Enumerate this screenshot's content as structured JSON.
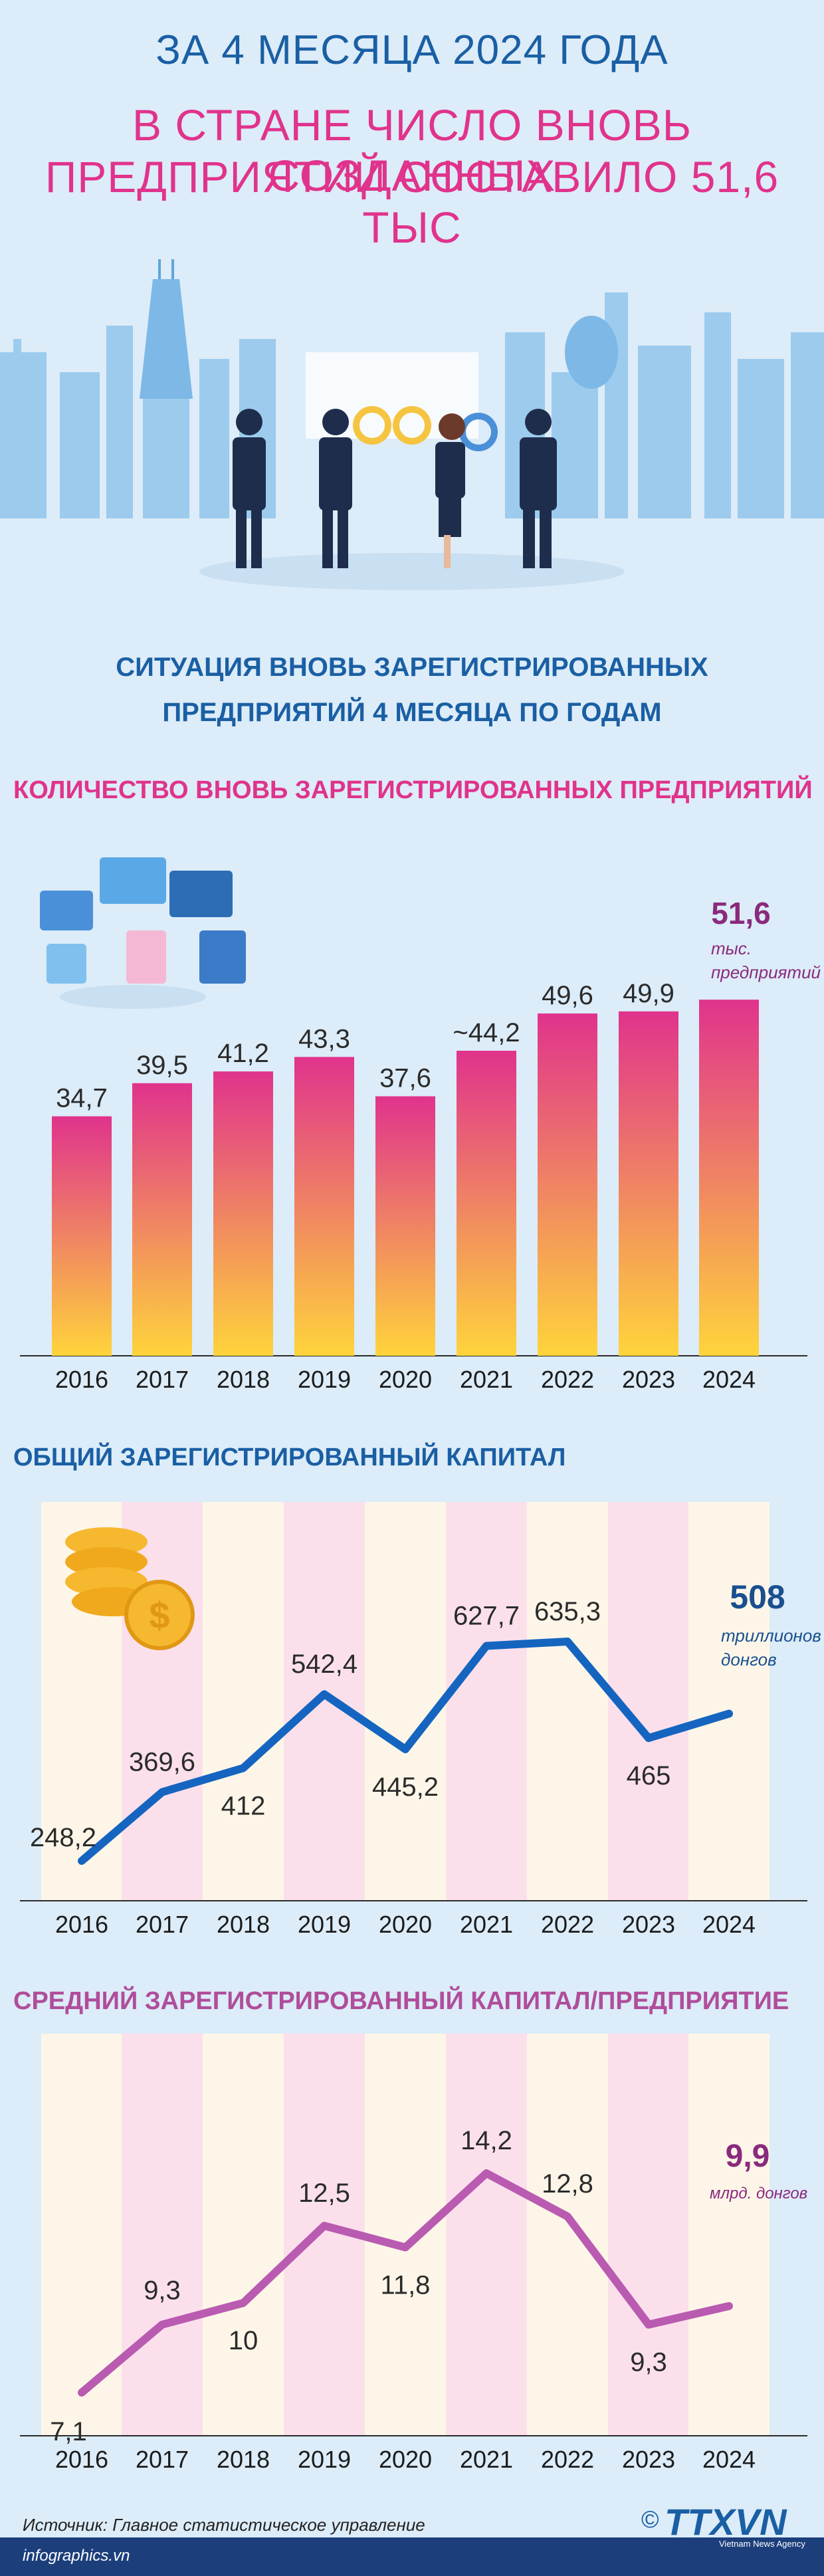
{
  "header": {
    "line1": "ЗА 4 МЕСЯЦА 2024 ГОДА",
    "line2": "В СТРАНЕ ЧИСЛО ВНОВЬ СОЗДАННЫХ",
    "line3": "ПРЕДПРИЯТИЙ СОСТАВИЛО 51,6 ТЫС"
  },
  "section": {
    "title_line1": "СИТУАЦИЯ ВНОВЬ ЗАРЕГИСТРИРОВАННЫХ",
    "title_line2": "ПРЕДПРИЯТИЙ 4 МЕСЯЦА ПО ГОДАМ"
  },
  "colors": {
    "accent_blue": "#1a5fa4",
    "accent_pink": "#e0338c",
    "accent_purple": "#b04d9b",
    "line_blue": "#1565c0",
    "line_purple": "#b95bb0"
  },
  "chart_data": [
    {
      "type": "bar",
      "title": "КОЛИЧЕСТВО ВНОВЬ ЗАРЕГИСТРИРОВАННЫХ ПРЕДПРИЯТИЙ",
      "categories": [
        "2016",
        "2017",
        "2018",
        "2019",
        "2020",
        "2021",
        "2022",
        "2023",
        "2024"
      ],
      "values": [
        34.7,
        39.5,
        41.2,
        43.3,
        37.6,
        44.2,
        49.6,
        49.9,
        51.6
      ],
      "labels": [
        "34,7",
        "39,5",
        "41,2",
        "43,3",
        "37,6",
        "~44,2",
        "49,6",
        "49,9",
        "51,6"
      ],
      "highlight_label": "51,6",
      "unit_lines": [
        "тыс.",
        "предприятий"
      ]
    },
    {
      "type": "line",
      "title": "ОБЩИЙ ЗАРЕГИСТРИРОВАННЫЙ КАПИТАЛ",
      "categories": [
        "2016",
        "2017",
        "2018",
        "2019",
        "2020",
        "2021",
        "2022",
        "2023",
        "2024"
      ],
      "values": [
        248.2,
        369.6,
        412,
        542.4,
        445.2,
        627.7,
        635.3,
        465,
        508
      ],
      "labels": [
        "248,2",
        "369,6",
        "412",
        "542,4",
        "445,2",
        "627,7",
        "635,3",
        "465",
        "508"
      ],
      "highlight_label": "508",
      "unit_lines": [
        "триллионов",
        "донгов"
      ]
    },
    {
      "type": "line",
      "title": "СРЕДНИЙ ЗАРЕГИСТРИРОВАННЫЙ КАПИТАЛ/ПРЕДПРИЯТИЕ",
      "categories": [
        "2016",
        "2017",
        "2018",
        "2019",
        "2020",
        "2021",
        "2022",
        "2023",
        "2024"
      ],
      "values": [
        7.1,
        9.3,
        10,
        12.5,
        11.8,
        14.2,
        12.8,
        9.3,
        9.9
      ],
      "labels": [
        "7,1",
        "9,3",
        "10",
        "12,5",
        "11,8",
        "14,2",
        "12,8",
        "9,3",
        "9,9"
      ],
      "highlight_label": "9,9",
      "unit_lines": [
        "млрд. донгов"
      ]
    }
  ],
  "footer": {
    "source": "Источник: Главное статистическое управление",
    "site": "infographics.vn",
    "logo": "TTXVN",
    "logo_sub": "Vietnam News Agency",
    "copyright": "©"
  }
}
